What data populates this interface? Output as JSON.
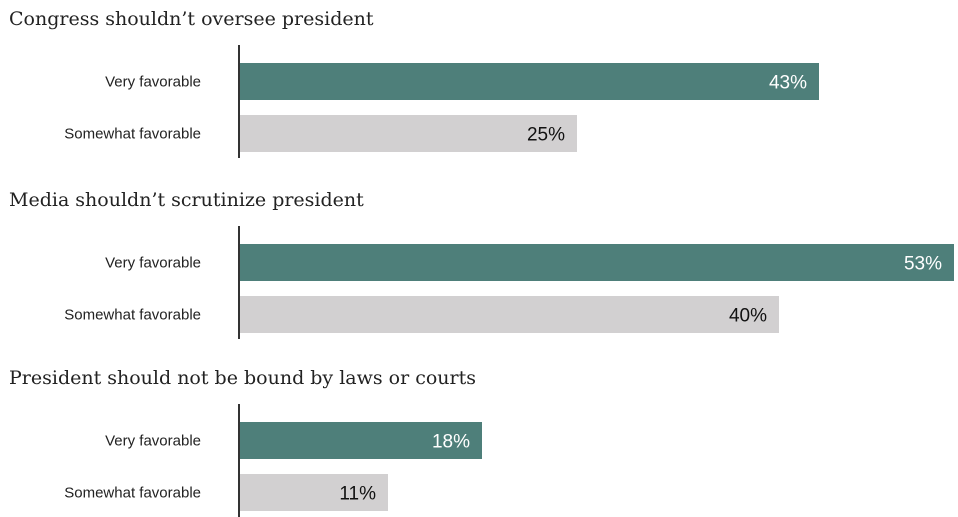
{
  "colors": {
    "very_favorable": "#4e7f7a",
    "somewhat_favorable": "#d2d0d1",
    "label_on_dark": "#ffffff",
    "label_on_light": "#111111"
  },
  "chart_data": [
    {
      "type": "bar",
      "orientation": "horizontal",
      "title": "Congress shouldn’t oversee president",
      "categories": [
        "Very favorable",
        "Somewhat favorable"
      ],
      "values": [
        43,
        25
      ],
      "value_labels": [
        "43%",
        "25%"
      ],
      "xlim": [
        0,
        53
      ]
    },
    {
      "type": "bar",
      "orientation": "horizontal",
      "title": "Media shouldn’t scrutinize president",
      "categories": [
        "Very favorable",
        "Somewhat favorable"
      ],
      "values": [
        53,
        40
      ],
      "value_labels": [
        "53%",
        "40%"
      ],
      "xlim": [
        0,
        53
      ]
    },
    {
      "type": "bar",
      "orientation": "horizontal",
      "title": "President should not be bound by laws or courts",
      "categories": [
        "Very favorable",
        "Somewhat favorable"
      ],
      "values": [
        18,
        11
      ],
      "value_labels": [
        "18%",
        "11%"
      ],
      "xlim": [
        0,
        53
      ]
    }
  ]
}
